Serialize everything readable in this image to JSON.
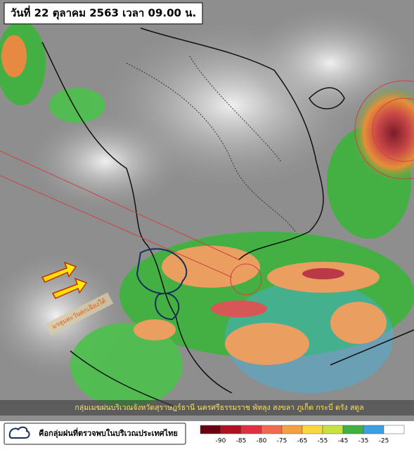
{
  "header": {
    "title": "วันที่ 22 ตุลาคม 2563 เวลา 09.00 น."
  },
  "annotation": {
    "label": "มรสุมตะวันตกเฉียงใต้"
  },
  "caption": "กลุ่มเมฆฝนบริเวณจังหวัดสุราษฎร์ธานี นครศรีธรรมราช พัทลุง สงขลา ภูเก็ต กระบี่ ตรัง สตูล",
  "legend": {
    "label": "คือกลุ่มฝนที่ตรวจพบในบริเวณประเทศไทย"
  },
  "colorbar": {
    "labels": [
      -90,
      -85,
      -80,
      -75,
      -65,
      -55,
      -45,
      -35,
      -25
    ]
  }
}
